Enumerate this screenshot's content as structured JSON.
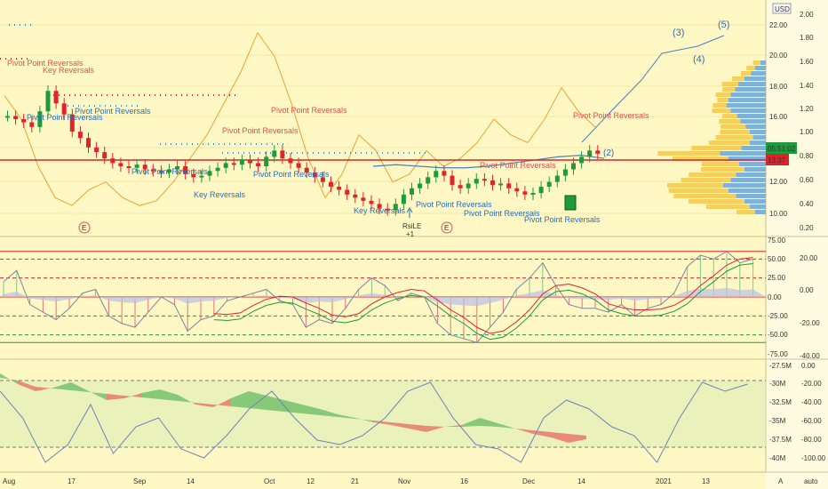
{
  "currency": "USD",
  "price_axis_ticks": [
    "2.00",
    "1.80",
    "1.60",
    "1.40",
    "1.20",
    "1.00",
    "0.80",
    "0.60",
    "0.40",
    "0.20"
  ],
  "volume_axis_ticks": [
    "22.00",
    "20.00",
    "18.00",
    "16.00",
    "14.00",
    "12.00",
    "10.00"
  ],
  "badges": {
    "countdown": "05:51:02",
    "price_line": "13.37"
  },
  "osc_axis_ticks": [
    "75.00",
    "50.00",
    "25.00",
    "0.00",
    "-25.00",
    "-50.00",
    "-75.00"
  ],
  "osc_right_ticks": [
    "20.00",
    "0.00",
    "-20.00",
    "-40.00"
  ],
  "p3_left_ticks": [
    "-27.5M",
    "-30M",
    "-32.5M",
    "-35M",
    "-37.5M",
    "-40M"
  ],
  "p3_right_ticks": [
    "0.00",
    "-20.00",
    "-40.00",
    "-60.00",
    "-80.00",
    "-100.00"
  ],
  "x_axis_labels": [
    "Aug",
    "17",
    "Sep",
    "14",
    "Oct",
    "12",
    "21",
    "Nov",
    "16",
    "Dec",
    "14",
    "2021",
    "13"
  ],
  "elliott_labels": [
    "(3)",
    "(5)",
    "(4)",
    "(2)"
  ],
  "event_markers": [
    "E",
    "E"
  ],
  "rsile": {
    "line1": "RsiLE",
    "line2": "+1"
  },
  "pattern_labels": [
    {
      "text": "Pivot Point Reversals",
      "color": "red"
    },
    {
      "text": "Key Reversals",
      "color": "red"
    },
    {
      "text": "Pivot Point Reversals",
      "color": "blue"
    },
    {
      "text": "Pivot Point Reversals",
      "color": "blue"
    },
    {
      "text": "Pivot Point Reversals",
      "color": "red"
    },
    {
      "text": "Pivot Point Reversals",
      "color": "red"
    },
    {
      "text": "Pivot Point Reversals",
      "color": "blue"
    },
    {
      "text": "Key Reversals",
      "color": "blue"
    },
    {
      "text": "Pivot Point Reversals",
      "color": "blue"
    },
    {
      "text": "Key Reversals",
      "color": "blue"
    },
    {
      "text": "Pivot Point Reversals",
      "color": "blue"
    },
    {
      "text": "Pivot Point Reversals",
      "color": "red"
    },
    {
      "text": "Pivot Point Reversals",
      "color": "blue"
    },
    {
      "text": "Pivot Point Reversals",
      "color": "blue"
    },
    {
      "text": "Pivot Point Reversals",
      "color": "red"
    }
  ],
  "footer": {
    "a": "A",
    "auto": "auto"
  },
  "colors": {
    "up": "#1e9a3c",
    "down": "#e0242d",
    "background": "#fff8c4",
    "price_line": "#d9232d",
    "volume_line": "#f0a030",
    "ma": "#4a7fc4"
  },
  "chart_data": {
    "type": "line",
    "main": {
      "candles_close": [
        16.2,
        16.0,
        15.8,
        15.5,
        16.5,
        17.8,
        17.0,
        16.3,
        15.2,
        14.8,
        14.2,
        13.9,
        13.5,
        13.2,
        13.0,
        12.9,
        13.1,
        12.8,
        12.7,
        12.6,
        12.8,
        13.0,
        12.5,
        12.3,
        12.4,
        12.7,
        12.9,
        13.2,
        13.1,
        13.4,
        13.2,
        13.0,
        13.6,
        14.0,
        13.5,
        13.2,
        12.9,
        12.6,
        12.3,
        12.0,
        11.7,
        11.5,
        11.2,
        11.0,
        10.8,
        10.6,
        10.3,
        10.2,
        10.6,
        11.2,
        11.6,
        11.9,
        12.3,
        12.7,
        12.4,
        11.8,
        11.6,
        11.9,
        12.2,
        12.1,
        11.8,
        11.9,
        11.6,
        11.4,
        11.2,
        11.3,
        11.7,
        12.0,
        12.4,
        12.8,
        13.2,
        13.6,
        14.0,
        13.8
      ],
      "volume_line": [
        17.5,
        16.0,
        13.0,
        11.0,
        10.5,
        11.5,
        12.0,
        11.0,
        10.5,
        10.8,
        12.0,
        13.5,
        15.0,
        17.0,
        19.0,
        21.5,
        20.0,
        17.0,
        13.5,
        11.0,
        12.5,
        15.0,
        14.0,
        12.0,
        12.5,
        14.0,
        13.0,
        13.5,
        14.5,
        16.0,
        15.0,
        14.5,
        16.0,
        18.0,
        16.5,
        15.5
      ],
      "ma": [
        13.0,
        13.1,
        13.0,
        12.9,
        12.9,
        13.0,
        13.2,
        13.4,
        13.6,
        13.7,
        13.5
      ],
      "price_line": 13.37
    },
    "oscillator": {
      "ylim": [
        -75,
        75
      ],
      "levels": [
        50,
        25,
        0,
        -25,
        -50
      ]
    },
    "panel3": {
      "ylim": [
        -40,
        -27.5
      ]
    }
  }
}
